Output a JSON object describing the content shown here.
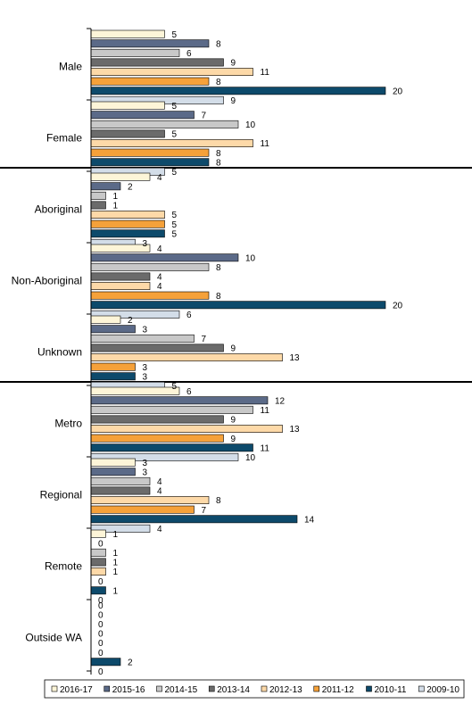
{
  "chart_data": {
    "type": "bar",
    "orientation": "horizontal",
    "categories": [
      "Male",
      "Female",
      "Aboriginal",
      "Non-Aboriginal",
      "Unknown",
      "Metro",
      "Regional",
      "Remote",
      "Outside WA"
    ],
    "groups": [
      {
        "categories": [
          "Male",
          "Female"
        ]
      },
      {
        "categories": [
          "Aboriginal",
          "Non-Aboriginal",
          "Unknown"
        ]
      },
      {
        "categories": [
          "Metro",
          "Regional",
          "Remote",
          "Outside WA"
        ]
      }
    ],
    "series": [
      {
        "name": "2016-17",
        "color": "#fdf5d8",
        "values": [
          5,
          5,
          4,
          4,
          2,
          6,
          3,
          1,
          0
        ]
      },
      {
        "name": "2015-16",
        "color": "#5b6a88",
        "values": [
          8,
          7,
          2,
          10,
          3,
          12,
          3,
          0,
          0
        ]
      },
      {
        "name": "2014-15",
        "color": "#c8c8c8",
        "values": [
          6,
          10,
          1,
          8,
          7,
          11,
          4,
          1,
          0
        ]
      },
      {
        "name": "2013-14",
        "color": "#6b6b6b",
        "values": [
          9,
          5,
          1,
          4,
          9,
          9,
          4,
          1,
          0
        ]
      },
      {
        "name": "2012-13",
        "color": "#fdd9a8",
        "values": [
          11,
          11,
          5,
          4,
          13,
          13,
          8,
          1,
          0
        ]
      },
      {
        "name": "2011-12",
        "color": "#f5a13a",
        "values": [
          8,
          8,
          5,
          8,
          3,
          9,
          7,
          0,
          0
        ]
      },
      {
        "name": "2010-11",
        "color": "#0d4a6b",
        "values": [
          20,
          8,
          5,
          20,
          3,
          11,
          14,
          1,
          2
        ]
      },
      {
        "name": "2009-10",
        "color": "#d3dde8",
        "values": [
          9,
          5,
          3,
          6,
          5,
          10,
          4,
          0,
          0
        ]
      }
    ],
    "xlim": [
      0,
      25
    ],
    "legend_position": "bottom",
    "grid": false
  }
}
